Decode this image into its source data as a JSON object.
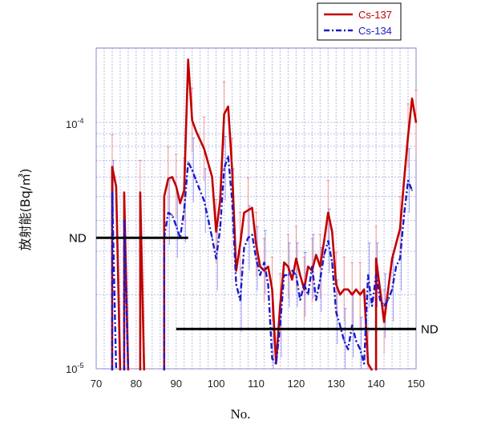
{
  "chart_data": {
    "type": "line",
    "xlabel": "No.",
    "ylabel": "放射能(Bq/㎥)",
    "x_ticks": [
      "70",
      "80",
      "90",
      "100",
      "110",
      "120",
      "130",
      "140",
      "150"
    ],
    "y_tick_labels": {
      "top": {
        "base": "10",
        "exp": "-4"
      },
      "bottom": {
        "base": "10",
        "exp": "-5"
      }
    },
    "xlim": [
      70,
      150
    ],
    "ylim": [
      1e-05,
      0.0002
    ],
    "yscale": "log",
    "grid": true,
    "legend_position": "top-right",
    "annotations": [
      {
        "text": "ND",
        "x_start": 70,
        "x_end": 93,
        "y": 3.4e-05,
        "side": "left"
      },
      {
        "text": "ND",
        "x_start": 90,
        "x_end": 150,
        "y": 1.45e-05,
        "side": "right"
      }
    ],
    "series": [
      {
        "name": "Cs-137",
        "color": "#c00000",
        "style": "solid",
        "points": [
          [
            74,
            6.6e-05
          ],
          [
            75,
            5.5e-05
          ],
          [
            76,
            null
          ],
          [
            77,
            5.2e-05
          ],
          [
            78,
            null
          ],
          [
            80,
            null
          ],
          [
            81,
            5.2e-05
          ],
          [
            82,
            null
          ],
          [
            86,
            null
          ],
          [
            87,
            5e-05
          ],
          [
            88,
            5.9e-05
          ],
          [
            89,
            6e-05
          ],
          [
            90,
            5.5e-05
          ],
          [
            91,
            4.7e-05
          ],
          [
            92,
            5.3e-05
          ],
          [
            93,
            0.00018
          ],
          [
            94,
            0.000102
          ],
          [
            95,
            9.2e-05
          ],
          [
            97,
            7.8e-05
          ],
          [
            99,
            6e-05
          ],
          [
            100,
            3.6e-05
          ],
          [
            101,
            4.8e-05
          ],
          [
            102,
            0.000108
          ],
          [
            103,
            0.000116
          ],
          [
            104,
            6.4e-05
          ],
          [
            105,
            2.5e-05
          ],
          [
            106,
            3.2e-05
          ],
          [
            107,
            4.3e-05
          ],
          [
            108,
            4.4e-05
          ],
          [
            109,
            4.5e-05
          ],
          [
            110,
            3.2e-05
          ],
          [
            111,
            2.6e-05
          ],
          [
            112,
            2.5e-05
          ],
          [
            113,
            2.6e-05
          ],
          [
            114,
            2.1e-05
          ],
          [
            115,
            1.05e-05
          ],
          [
            116,
            1.8e-05
          ],
          [
            117,
            2.7e-05
          ],
          [
            118,
            2.6e-05
          ],
          [
            119,
            2.3e-05
          ],
          [
            120,
            2.8e-05
          ],
          [
            121,
            2.4e-05
          ],
          [
            122,
            2.1e-05
          ],
          [
            123,
            2.6e-05
          ],
          [
            124,
            2.5e-05
          ],
          [
            125,
            2.9e-05
          ],
          [
            126,
            2.6e-05
          ],
          [
            127,
            3.3e-05
          ],
          [
            128,
            4.3e-05
          ],
          [
            129,
            3.6e-05
          ],
          [
            130,
            2.2e-05
          ],
          [
            131,
            2e-05
          ],
          [
            132,
            2.1e-05
          ],
          [
            133,
            2.1e-05
          ],
          [
            134,
            2e-05
          ],
          [
            135,
            2.1e-05
          ],
          [
            136,
            2e-05
          ],
          [
            137,
            2.1e-05
          ],
          [
            138,
            1.05e-05
          ],
          [
            139,
            null
          ],
          [
            140,
            2.8e-05
          ],
          [
            141,
            2.1e-05
          ],
          [
            142,
            1.55e-05
          ],
          [
            144,
            2.8e-05
          ],
          [
            146,
            3.7e-05
          ],
          [
            147,
            5.8e-05
          ],
          [
            148,
            8.8e-05
          ],
          [
            149,
            0.000125
          ],
          [
            150,
            0.0001
          ]
        ]
      },
      {
        "name": "Cs-134",
        "color": "#1a1acc",
        "style": "dash-dot",
        "points": [
          [
            74,
            5.2e-05
          ],
          [
            75,
            null
          ],
          [
            76,
            null
          ],
          [
            77,
            4e-05
          ],
          [
            78,
            null
          ],
          [
            87,
            3.4e-05
          ],
          [
            88,
            4.3e-05
          ],
          [
            89,
            4.2e-05
          ],
          [
            90,
            3.8e-05
          ],
          [
            91,
            3.4e-05
          ],
          [
            92,
            4.4e-05
          ],
          [
            93,
            6.9e-05
          ],
          [
            94,
            6.4e-05
          ],
          [
            95,
            5.8e-05
          ],
          [
            97,
            4.8e-05
          ],
          [
            99,
            3.4e-05
          ],
          [
            100,
            2.8e-05
          ],
          [
            101,
            3.7e-05
          ],
          [
            102,
            6.5e-05
          ],
          [
            103,
            7.3e-05
          ],
          [
            104,
            4.8e-05
          ],
          [
            105,
            2.2e-05
          ],
          [
            106,
            1.9e-05
          ],
          [
            107,
            3.1e-05
          ],
          [
            108,
            3.4e-05
          ],
          [
            109,
            3.5e-05
          ],
          [
            110,
            2.8e-05
          ],
          [
            111,
            2.4e-05
          ],
          [
            112,
            2.7e-05
          ],
          [
            113,
            2.2e-05
          ],
          [
            114,
            1.1e-05
          ],
          [
            115,
            1.05e-05
          ],
          [
            116,
            1.5e-05
          ],
          [
            117,
            2.4e-05
          ],
          [
            118,
            2.4e-05
          ],
          [
            119,
            2.5e-05
          ],
          [
            120,
            2.4e-05
          ],
          [
            121,
            1.9e-05
          ],
          [
            122,
            2.2e-05
          ],
          [
            123,
            2e-05
          ],
          [
            124,
            2.6e-05
          ],
          [
            125,
            1.9e-05
          ],
          [
            126,
            2.3e-05
          ],
          [
            127,
            2.9e-05
          ],
          [
            128,
            3.3e-05
          ],
          [
            129,
            2.7e-05
          ],
          [
            130,
            1.7e-05
          ],
          [
            131,
            1.5e-05
          ],
          [
            132,
            1.3e-05
          ],
          [
            133,
            1.2e-05
          ],
          [
            134,
            1.5e-05
          ],
          [
            135,
            1.3e-05
          ],
          [
            136,
            1.2e-05
          ],
          [
            137,
            1.05e-05
          ],
          [
            138,
            2.4e-05
          ],
          [
            139,
            1.8e-05
          ],
          [
            140,
            2.4e-05
          ],
          [
            141,
            1.9e-05
          ],
          [
            142,
            1.8e-05
          ],
          [
            143,
            1.9e-05
          ],
          [
            144,
            2.1e-05
          ],
          [
            145,
            2.6e-05
          ],
          [
            146,
            2.8e-05
          ],
          [
            147,
            4.2e-05
          ],
          [
            148,
            5.8e-05
          ],
          [
            149,
            5.3e-05
          ]
        ]
      }
    ]
  }
}
